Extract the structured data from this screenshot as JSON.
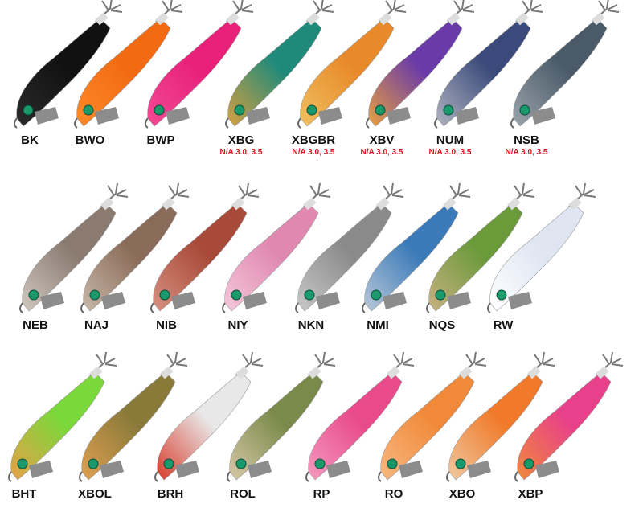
{
  "rows": [
    [
      {
        "code": "BK",
        "note": "",
        "c1": "#111111",
        "c2": "#2a2a2a"
      },
      {
        "code": "BWO",
        "note": "",
        "c1": "#f26a12",
        "c2": "#ff8a2a"
      },
      {
        "code": "BWP",
        "note": "",
        "c1": "#e8207a",
        "c2": "#f24a94"
      },
      {
        "code": "XBG",
        "note": "N/A 3.0, 3.5",
        "c1": "#1f8a7a",
        "c2": "#d8a040"
      },
      {
        "code": "XBGBR",
        "note": "N/A 3.0, 3.5",
        "c1": "#e88a2a",
        "c2": "#f0c060"
      },
      {
        "code": "XBV",
        "note": "N/A 3.0, 3.5",
        "c1": "#6a3aa8",
        "c2": "#e8a040"
      },
      {
        "code": "NUM",
        "note": "N/A 3.0, 3.5",
        "c1": "#3a4a7a",
        "c2": "#b0b4c0"
      },
      {
        "code": "NSB",
        "note": "N/A 3.0, 3.5",
        "c1": "#4a5a68",
        "c2": "#9aa4ac"
      }
    ],
    [
      {
        "code": "NEB",
        "note": "",
        "c1": "#8a7a70",
        "c2": "#d0c8c0"
      },
      {
        "code": "NAJ",
        "note": "",
        "c1": "#8a6a58",
        "c2": "#c8b8a8"
      },
      {
        "code": "NIB",
        "note": "",
        "c1": "#a84a3a",
        "c2": "#d89080"
      },
      {
        "code": "NIY",
        "note": "",
        "c1": "#e088b0",
        "c2": "#f4c8dc"
      },
      {
        "code": "NKN",
        "note": "",
        "c1": "#8a8a8a",
        "c2": "#c8c8c8"
      },
      {
        "code": "NMI",
        "note": "",
        "c1": "#3a7ab8",
        "c2": "#b8c8d8"
      },
      {
        "code": "NQS",
        "note": "",
        "c1": "#6a9a3a",
        "c2": "#c8b080"
      },
      {
        "code": "RW",
        "note": "",
        "c1": "#dfe6f2",
        "c2": "#ffffff"
      }
    ],
    [
      {
        "code": "BHT",
        "note": "",
        "c1": "#7ad83a",
        "c2": "#e8a048"
      },
      {
        "code": "XBOL",
        "note": "",
        "c1": "#8a7a3a",
        "c2": "#e0a050"
      },
      {
        "code": "BRH",
        "note": "",
        "c1": "#e8e8e8",
        "c2": "#d83a2a"
      },
      {
        "code": "ROL",
        "note": "",
        "c1": "#7a8a4a",
        "c2": "#d8c8a8"
      },
      {
        "code": "RP",
        "note": "",
        "c1": "#e84a8a",
        "c2": "#f49ac0"
      },
      {
        "code": "RO",
        "note": "",
        "c1": "#f08a3a",
        "c2": "#f8b880"
      },
      {
        "code": "XBO",
        "note": "",
        "c1": "#f07a2a",
        "c2": "#f0c8a0"
      },
      {
        "code": "XBP",
        "note": "",
        "c1": "#e8408a",
        "c2": "#f08a3a"
      }
    ]
  ]
}
